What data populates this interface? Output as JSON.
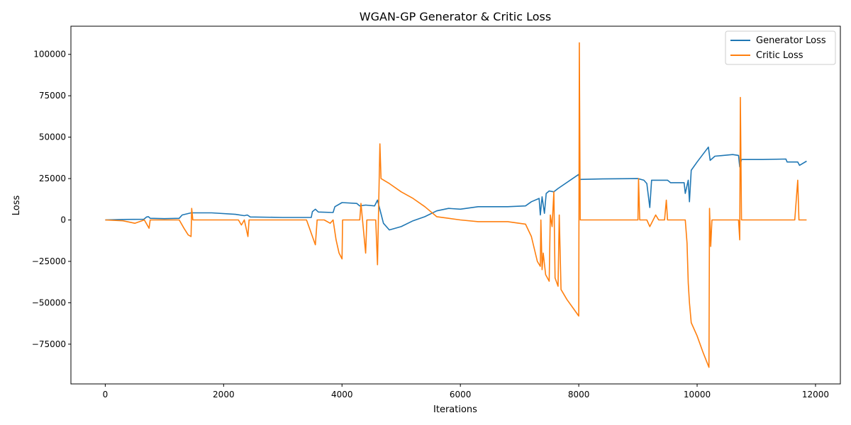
{
  "chart_data": {
    "type": "line",
    "title": "WGAN-GP Generator & Critic Loss",
    "xlabel": "Iterations",
    "ylabel": "Loss",
    "xlim": [
      -580,
      12420
    ],
    "ylim": [
      -99000,
      117000
    ],
    "x_ticks": [
      0,
      2000,
      4000,
      6000,
      8000,
      10000,
      12000
    ],
    "x_tick_labels": [
      "0",
      "2000",
      "4000",
      "6000",
      "8000",
      "10000",
      "12000"
    ],
    "y_ticks": [
      -75000,
      -50000,
      -25000,
      0,
      25000,
      50000,
      75000,
      100000
    ],
    "y_tick_labels": [
      "−75000",
      "−50000",
      "−25000",
      "0",
      "25000",
      "50000",
      "75000",
      "100000"
    ],
    "grid": false,
    "legend_position": "top-right",
    "series": [
      {
        "name": "Generator Loss",
        "color": "#1f77b4",
        "points": [
          [
            0,
            0
          ],
          [
            300,
            300
          ],
          [
            650,
            400
          ],
          [
            700,
            1800
          ],
          [
            730,
            2000
          ],
          [
            760,
            1000
          ],
          [
            1000,
            800
          ],
          [
            1250,
            1000
          ],
          [
            1300,
            3000
          ],
          [
            1450,
            4300
          ],
          [
            1800,
            4300
          ],
          [
            2200,
            3400
          ],
          [
            2350,
            2600
          ],
          [
            2400,
            3000
          ],
          [
            2450,
            1800
          ],
          [
            3000,
            1500
          ],
          [
            3480,
            1500
          ],
          [
            3500,
            5000
          ],
          [
            3550,
            6500
          ],
          [
            3600,
            4800
          ],
          [
            3850,
            4500
          ],
          [
            3880,
            8000
          ],
          [
            4000,
            10500
          ],
          [
            4250,
            10000
          ],
          [
            4300,
            8500
          ],
          [
            4400,
            9000
          ],
          [
            4550,
            8500
          ],
          [
            4600,
            12000
          ],
          [
            4700,
            -2000
          ],
          [
            4800,
            -6000
          ],
          [
            5000,
            -4000
          ],
          [
            5200,
            -500
          ],
          [
            5400,
            2000
          ],
          [
            5600,
            5500
          ],
          [
            5800,
            7000
          ],
          [
            6000,
            6500
          ],
          [
            6300,
            8000
          ],
          [
            6800,
            8000
          ],
          [
            7100,
            8500
          ],
          [
            7200,
            11000
          ],
          [
            7330,
            13000
          ],
          [
            7350,
            3000
          ],
          [
            7380,
            14000
          ],
          [
            7420,
            4000
          ],
          [
            7450,
            16000
          ],
          [
            7500,
            17500
          ],
          [
            7580,
            17000
          ],
          [
            7650,
            19000
          ],
          [
            8000,
            27500
          ],
          [
            8010,
            24500
          ],
          [
            8400,
            24800
          ],
          [
            9000,
            25000
          ],
          [
            9100,
            24000
          ],
          [
            9150,
            22000
          ],
          [
            9200,
            7500
          ],
          [
            9230,
            24000
          ],
          [
            9500,
            24000
          ],
          [
            9550,
            22500
          ],
          [
            9780,
            22500
          ],
          [
            9800,
            16000
          ],
          [
            9850,
            24000
          ],
          [
            9870,
            11000
          ],
          [
            9900,
            30000
          ],
          [
            10000,
            35000
          ],
          [
            10190,
            44000
          ],
          [
            10220,
            36000
          ],
          [
            10300,
            38500
          ],
          [
            10600,
            39500
          ],
          [
            10700,
            39000
          ],
          [
            10720,
            32000
          ],
          [
            10750,
            36500
          ],
          [
            11100,
            36500
          ],
          [
            11500,
            36800
          ],
          [
            11520,
            35000
          ],
          [
            11700,
            35000
          ],
          [
            11730,
            33000
          ],
          [
            11850,
            35500
          ]
        ]
      },
      {
        "name": "Critic Loss",
        "color": "#ff7f0e",
        "points": [
          [
            0,
            0
          ],
          [
            300,
            -500
          ],
          [
            500,
            -2000
          ],
          [
            660,
            0
          ],
          [
            740,
            -5000
          ],
          [
            760,
            0
          ],
          [
            1250,
            0
          ],
          [
            1330,
            -5000
          ],
          [
            1400,
            -9000
          ],
          [
            1450,
            -10000
          ],
          [
            1460,
            7000
          ],
          [
            1480,
            0
          ],
          [
            2250,
            0
          ],
          [
            2300,
            -3000
          ],
          [
            2350,
            0
          ],
          [
            2410,
            -10000
          ],
          [
            2430,
            0
          ],
          [
            3400,
            0
          ],
          [
            3450,
            -5000
          ],
          [
            3550,
            -15000
          ],
          [
            3580,
            0
          ],
          [
            3700,
            0
          ],
          [
            3800,
            -2000
          ],
          [
            3850,
            0
          ],
          [
            3900,
            -12000
          ],
          [
            3950,
            -20000
          ],
          [
            4000,
            -23500
          ],
          [
            4010,
            0
          ],
          [
            4300,
            0
          ],
          [
            4320,
            10000
          ],
          [
            4400,
            -20000
          ],
          [
            4420,
            0
          ],
          [
            4570,
            0
          ],
          [
            4600,
            -27000
          ],
          [
            4640,
            46000
          ],
          [
            4660,
            25000
          ],
          [
            4800,
            22000
          ],
          [
            5000,
            17000
          ],
          [
            5200,
            13000
          ],
          [
            5400,
            8000
          ],
          [
            5600,
            2000
          ],
          [
            5800,
            1000
          ],
          [
            6000,
            0
          ],
          [
            6300,
            -1000
          ],
          [
            6800,
            -1000
          ],
          [
            7100,
            -2500
          ],
          [
            7200,
            -10000
          ],
          [
            7300,
            -25000
          ],
          [
            7350,
            -28000
          ],
          [
            7360,
            0
          ],
          [
            7380,
            -30000
          ],
          [
            7400,
            -20000
          ],
          [
            7440,
            -33000
          ],
          [
            7500,
            -37000
          ],
          [
            7520,
            3000
          ],
          [
            7550,
            -4000
          ],
          [
            7580,
            17000
          ],
          [
            7600,
            -35000
          ],
          [
            7650,
            -40000
          ],
          [
            7670,
            3000
          ],
          [
            7700,
            -42000
          ],
          [
            7800,
            -48000
          ],
          [
            7900,
            -53000
          ],
          [
            8000,
            -58000
          ],
          [
            8010,
            107000
          ],
          [
            8025,
            0
          ],
          [
            9000,
            0
          ],
          [
            9010,
            25000
          ],
          [
            9030,
            0
          ],
          [
            9150,
            0
          ],
          [
            9200,
            -4000
          ],
          [
            9300,
            3000
          ],
          [
            9350,
            0
          ],
          [
            9450,
            0
          ],
          [
            9480,
            12000
          ],
          [
            9500,
            0
          ],
          [
            9800,
            0
          ],
          [
            9830,
            -14000
          ],
          [
            9850,
            -38000
          ],
          [
            9870,
            -50000
          ],
          [
            9900,
            -62000
          ],
          [
            10000,
            -70000
          ],
          [
            10100,
            -80000
          ],
          [
            10200,
            -89000
          ],
          [
            10210,
            7000
          ],
          [
            10230,
            -16000
          ],
          [
            10250,
            0
          ],
          [
            10700,
            0
          ],
          [
            10720,
            -12000
          ],
          [
            10730,
            74000
          ],
          [
            10750,
            0
          ],
          [
            11650,
            0
          ],
          [
            11700,
            24000
          ],
          [
            11720,
            0
          ],
          [
            11850,
            0
          ]
        ]
      }
    ]
  }
}
